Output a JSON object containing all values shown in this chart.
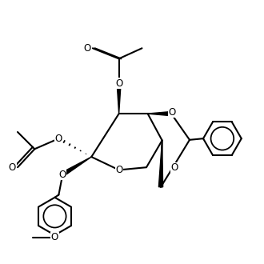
{
  "bg_color": "#ffffff",
  "line_color": "#000000",
  "line_width": 1.5,
  "figsize": [
    3.3,
    3.3
  ],
  "dpi": 100,
  "xlim": [
    0,
    1
  ],
  "ylim": [
    0,
    1
  ]
}
